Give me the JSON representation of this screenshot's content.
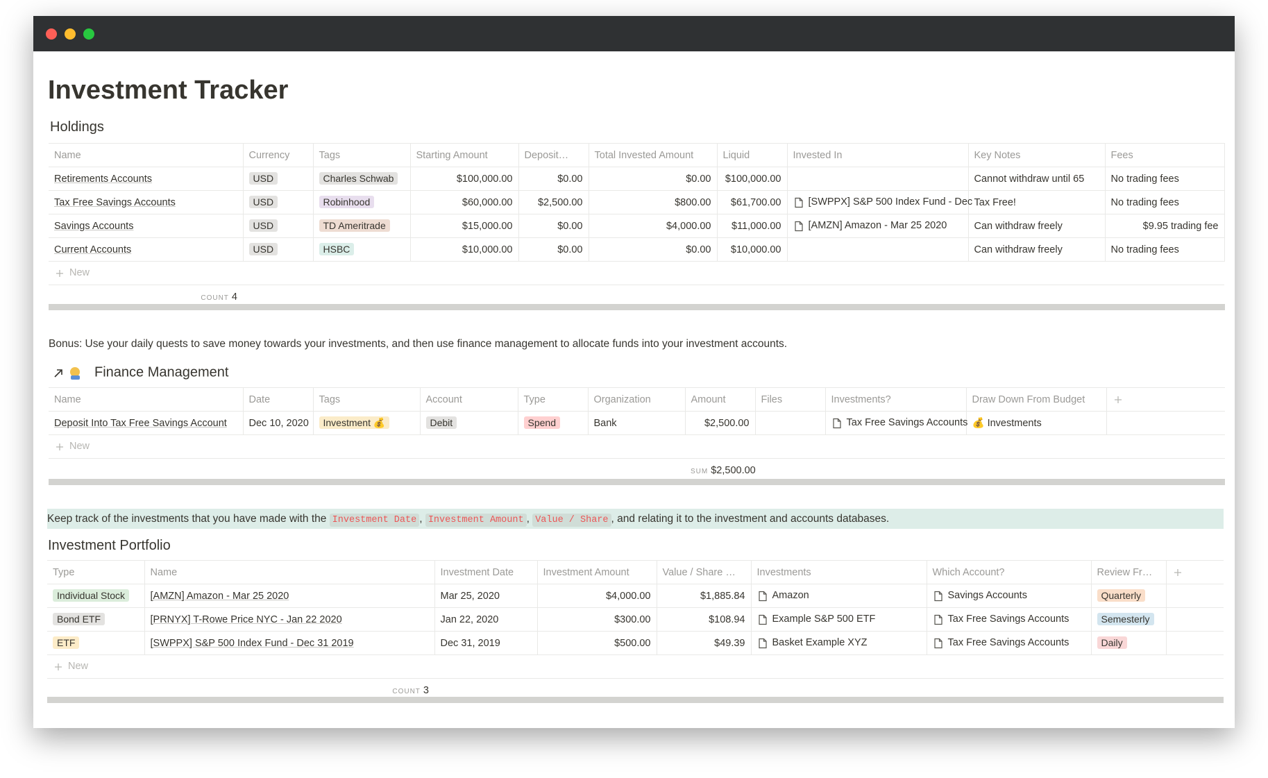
{
  "title": "Investment Tracker",
  "holdings": {
    "title": "Holdings",
    "columns": [
      "Name",
      "Currency",
      "Tags",
      "Starting Amount",
      "Deposit…",
      "Total Invested Amount",
      "Liquid",
      "Invested In",
      "Key Notes",
      "Fees"
    ],
    "rows": [
      [
        "Retirements Accounts",
        {
          "tag": "USD",
          "color": "#e3e2e0"
        },
        {
          "tag": "Charles Schwab",
          "color": "#e3e2e0"
        },
        "$100,000.00",
        "$0.00",
        "$0.00",
        "$100,000.00",
        null,
        "Cannot withdraw until 65",
        "No trading fees"
      ],
      [
        "Tax Free Savings Accounts",
        {
          "tag": "USD",
          "color": "#e3e2e0"
        },
        {
          "tag": "Robinhood",
          "color": "#e8deee"
        },
        "$60,000.00",
        "$2,500.00",
        "$800.00",
        "$61,700.00",
        {
          "page": "[SWPPX] S&P 500 Index Fund - Dec"
        },
        "Tax Free!",
        "No trading fees"
      ],
      [
        "Savings Accounts",
        {
          "tag": "USD",
          "color": "#e3e2e0"
        },
        {
          "tag": "TD Ameritrade",
          "color": "#eedcd2"
        },
        "$15,000.00",
        "$0.00",
        "$4,000.00",
        "$11,000.00",
        {
          "page": "[AMZN] Amazon - Mar 25 2020"
        },
        "Can withdraw freely",
        "$9.95 trading fee"
      ],
      [
        "Current Accounts",
        {
          "tag": "USD",
          "color": "#e3e2e0"
        },
        {
          "tag": "HSBC",
          "color": "#dbeee9"
        },
        "$10,000.00",
        "$0.00",
        "$0.00",
        "$10,000.00",
        null,
        "Can withdraw freely",
        "No trading fees"
      ]
    ],
    "new": "New",
    "footer": {
      "label": "COUNT",
      "value": 4
    }
  },
  "bonus": "Bonus: Use your daily quests to save money towards your investments, and then use finance management to allocate funds into your investment accounts.",
  "finance": {
    "title": "Finance Management",
    "columns": [
      "Name",
      "Date",
      "Tags",
      "Account",
      "Type",
      "Organization",
      "Amount",
      "Files",
      "Investments?",
      "Draw Down From Budget"
    ],
    "rows": [
      [
        "Deposit Into Tax Free Savings Account",
        "Dec 10, 2020",
        {
          "tag": "Investment 💰",
          "color": "#fbecc9"
        },
        {
          "tag": "Debit",
          "color": "#e3e2e0"
        },
        {
          "tag": "Spend",
          "color": "#ffd0d0"
        },
        "Bank",
        "$2,500.00",
        null,
        {
          "page": "Tax Free Savings Accounts"
        },
        {
          "link": "💰 Investments"
        }
      ]
    ],
    "new": "New",
    "footer": {
      "label": "SUM",
      "value": "$2,500.00"
    }
  },
  "note": {
    "parts": [
      {
        "text": "Keep track of the investments that you have made with the "
      },
      {
        "text": "Investment Date",
        "code": true
      },
      {
        "text": ", "
      },
      {
        "text": "Investment Amount",
        "code": true
      },
      {
        "text": ", "
      },
      {
        "text": "Value / Share",
        "code": true
      },
      {
        "text": ", and relating it to the investment and accounts databases."
      }
    ]
  },
  "portfolio": {
    "title": "Investment Portfolio",
    "columns": [
      "Type",
      "Name",
      "Investment Date",
      "Investment Amount",
      "Value / Share …",
      "Investments",
      "Which Account?",
      "Review Fr…"
    ],
    "rows": [
      [
        {
          "tag": "Individual Stock",
          "color": "#dbeddb"
        },
        "[AMZN] Amazon - Mar 25 2020",
        "Mar 25, 2020",
        "$4,000.00",
        "$1,885.84",
        {
          "page": "Amazon"
        },
        {
          "page": "Savings Accounts"
        },
        {
          "tag": "Quarterly",
          "color": "#fadec9"
        }
      ],
      [
        {
          "tag": "Bond ETF",
          "color": "#e3e2e0"
        },
        "[PRNYX] T-Rowe Price NYC - Jan 22 2020",
        "Jan 22, 2020",
        "$300.00",
        "$108.94",
        {
          "page": "Example S&P 500 ETF"
        },
        {
          "page": "Tax Free Savings Accounts"
        },
        {
          "tag": "Semesterly",
          "color": "#d3e5ef"
        }
      ],
      [
        {
          "tag": "ETF",
          "color": "#fdecc8"
        },
        "[SWPPX] S&P 500 Index Fund - Dec 31 2019",
        "Dec 31, 2019",
        "$500.00",
        "$49.39",
        {
          "page": "Basket Example XYZ"
        },
        {
          "page": "Tax Free Savings Accounts"
        },
        {
          "tag": "Daily",
          "color": "#f9d7d7"
        }
      ]
    ],
    "new": "New",
    "footer": {
      "label": "COUNT",
      "value": 3
    }
  }
}
